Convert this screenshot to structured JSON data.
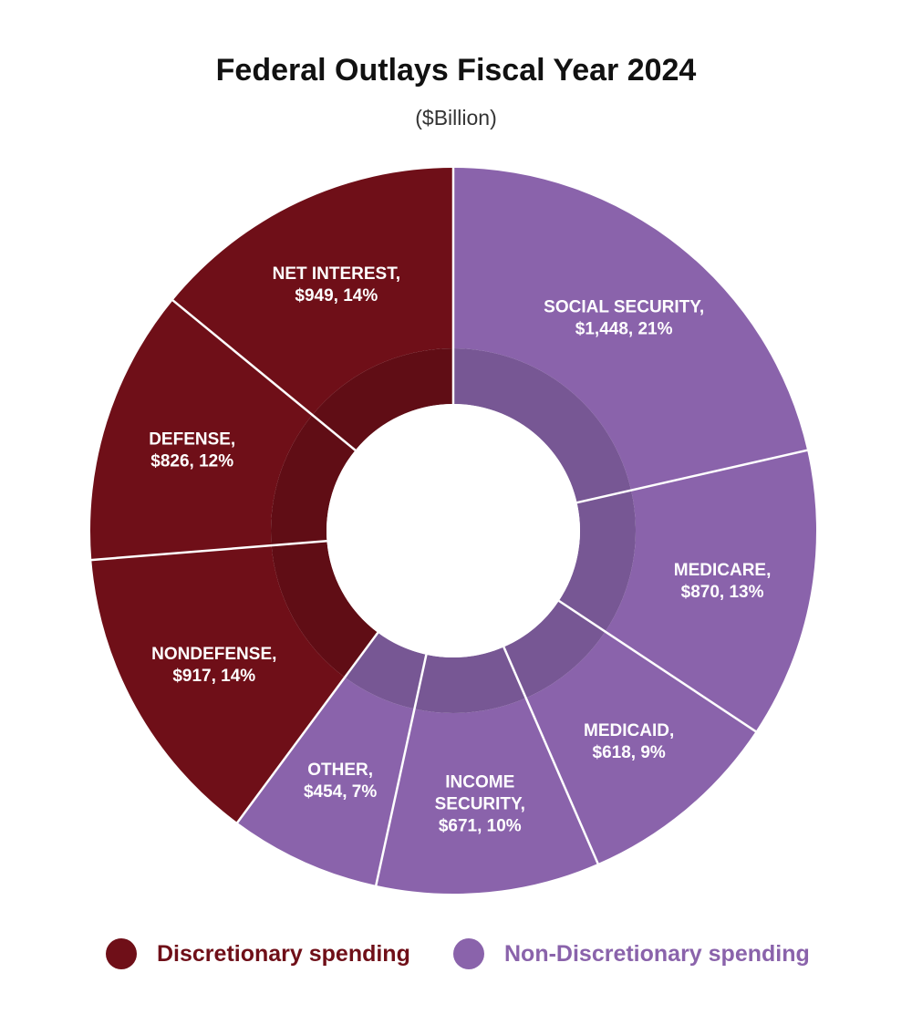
{
  "chart_data": {
    "type": "pie",
    "title": "Federal Outlays Fiscal Year 2024",
    "subtitle": "($Billion)",
    "donut": true,
    "slices": [
      {
        "lines": [
          "SOCIAL SECURITY,",
          "$1,448, 21%"
        ],
        "value": 1448,
        "percent": 21,
        "group": "non_discretionary"
      },
      {
        "lines": [
          "MEDICARE,",
          "$870, 13%"
        ],
        "value": 870,
        "percent": 13,
        "group": "non_discretionary"
      },
      {
        "lines": [
          "MEDICAID,",
          "$618, 9%"
        ],
        "value": 618,
        "percent": 9,
        "group": "non_discretionary"
      },
      {
        "lines": [
          "INCOME",
          "SECURITY,",
          "$671, 10%"
        ],
        "value": 671,
        "percent": 10,
        "group": "non_discretionary"
      },
      {
        "lines": [
          "OTHER,",
          "$454, 7%"
        ],
        "value": 454,
        "percent": 7,
        "group": "non_discretionary"
      },
      {
        "lines": [
          "NONDEFENSE,",
          "$917, 14%"
        ],
        "value": 917,
        "percent": 14,
        "group": "discretionary"
      },
      {
        "lines": [
          "DEFENSE,",
          "$826, 12%"
        ],
        "value": 826,
        "percent": 12,
        "group": "discretionary"
      },
      {
        "lines": [
          "NET INTEREST,",
          "$949, 14%"
        ],
        "value": 949,
        "percent": 14,
        "group": "discretionary"
      }
    ],
    "legend": [
      {
        "label": "Discretionary spending",
        "color": "#6f0f18"
      },
      {
        "label": "Non-Discretionary spending",
        "color": "#8a63ab"
      }
    ],
    "colors": {
      "discretionary": "#6f0f18",
      "discretionary_inner": "#600d15",
      "non_discretionary": "#8a63ab",
      "non_discretionary_inner": "#775794"
    },
    "legend_position": "bottom"
  }
}
